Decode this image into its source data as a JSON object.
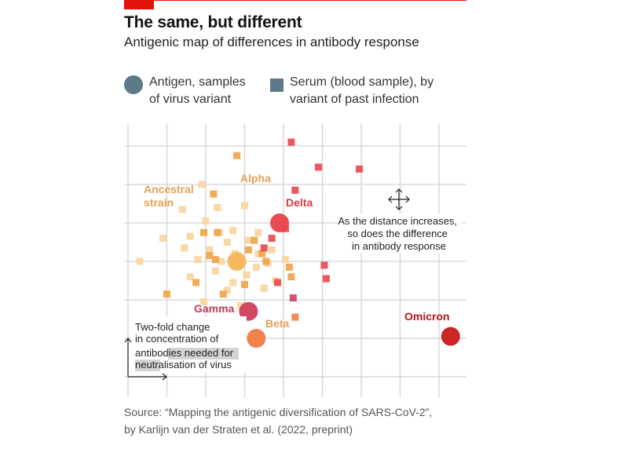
{
  "header": {
    "title": "The same, but different",
    "subtitle": "Antigenic map of differences in antibody response"
  },
  "legend": {
    "antigen_label": "Antigen, samples\nof virus variant",
    "serum_label": "Serum (blood sample), by\nvariant of past infection",
    "antigen_color": "#5d7a89",
    "serum_color": "#5d7a89"
  },
  "source": "Source: “Mapping the antigenic diversification of SARS-CoV-2”,\nby Karlijn van der Straten et al. (2022, preprint)",
  "colors": {
    "ancestral_light": "#f9d8a6",
    "ancestral_big": "#f7b556",
    "alpha": "#f0a040",
    "delta": "#e8424a",
    "gamma": "#cc3e5c",
    "beta": "#f07b42",
    "omicron": "#c91a1a",
    "label_orange": "#e7a257",
    "label_red": "#d63b44",
    "label_gamma": "#c23b57",
    "label_omicron": "#b7141c",
    "grid": "#d3d3d3"
  },
  "chart_data": {
    "type": "scatter",
    "x_units": "two-fold steps",
    "y_units": "two-fold steps",
    "xlim": [
      0,
      8.7
    ],
    "ylim": [
      0,
      6.6
    ],
    "grid": true,
    "antigens": [
      {
        "label": "Ancestral strain",
        "x": 2.8,
        "y": 3.0,
        "color": "ancestral_big"
      },
      {
        "label": "Delta",
        "x": 3.9,
        "y": 4.0,
        "color": "delta"
      },
      {
        "label": "Gamma",
        "x": 3.1,
        "y": 1.7,
        "color": "gamma"
      },
      {
        "label": "Beta",
        "x": 3.3,
        "y": 1.0,
        "color": "beta"
      },
      {
        "label": "Omicron",
        "x": 8.3,
        "y": 1.05,
        "color": "omicron"
      }
    ],
    "sera": [
      {
        "x": 1.9,
        "y": 5.0,
        "color": "ancestral_light"
      },
      {
        "x": 1.4,
        "y": 4.35,
        "color": "ancestral_light"
      },
      {
        "x": 2.3,
        "y": 4.4,
        "color": "ancestral_light"
      },
      {
        "x": 3.0,
        "y": 4.45,
        "color": "ancestral_light"
      },
      {
        "x": 2.0,
        "y": 4.05,
        "color": "ancestral_light"
      },
      {
        "x": 0.9,
        "y": 3.6,
        "color": "ancestral_light"
      },
      {
        "x": 1.6,
        "y": 3.65,
        "color": "ancestral_light"
      },
      {
        "x": 2.35,
        "y": 3.75,
        "color": "ancestral_light"
      },
      {
        "x": 2.7,
        "y": 3.8,
        "color": "ancestral_light"
      },
      {
        "x": 3.35,
        "y": 3.75,
        "color": "ancestral_light"
      },
      {
        "x": 1.45,
        "y": 3.35,
        "color": "ancestral_light"
      },
      {
        "x": 2.1,
        "y": 3.3,
        "color": "ancestral_light"
      },
      {
        "x": 2.55,
        "y": 3.5,
        "color": "ancestral_light"
      },
      {
        "x": 3.1,
        "y": 3.55,
        "color": "ancestral_light"
      },
      {
        "x": 3.7,
        "y": 3.3,
        "color": "ancestral_light"
      },
      {
        "x": 0.3,
        "y": 3.0,
        "color": "ancestral_light"
      },
      {
        "x": 1.8,
        "y": 3.05,
        "color": "ancestral_light"
      },
      {
        "x": 2.25,
        "y": 2.75,
        "color": "ancestral_light"
      },
      {
        "x": 3.3,
        "y": 2.85,
        "color": "ancestral_light"
      },
      {
        "x": 3.6,
        "y": 2.95,
        "color": "ancestral_light"
      },
      {
        "x": 4.05,
        "y": 3.05,
        "color": "ancestral_light"
      },
      {
        "x": 1.6,
        "y": 2.6,
        "color": "ancestral_light"
      },
      {
        "x": 2.7,
        "y": 2.45,
        "color": "ancestral_light"
      },
      {
        "x": 3.05,
        "y": 2.65,
        "color": "ancestral_light"
      },
      {
        "x": 3.8,
        "y": 2.5,
        "color": "ancestral_light"
      },
      {
        "x": 2.55,
        "y": 2.25,
        "color": "ancestral_light"
      },
      {
        "x": 3.5,
        "y": 2.3,
        "color": "ancestral_light"
      },
      {
        "x": 1.95,
        "y": 1.95,
        "color": "ancestral_light"
      },
      {
        "x": 2.9,
        "y": 1.85,
        "color": "ancestral_light"
      },
      {
        "x": 3.35,
        "y": 3.2,
        "color": "ancestral_light"
      },
      {
        "x": 2.75,
        "y": 3.2,
        "color": "ancestral_light"
      },
      {
        "x": 2.4,
        "y": 3.0,
        "color": "ancestral_light"
      },
      {
        "x": 2.8,
        "y": 5.75,
        "color": "alpha"
      },
      {
        "x": 2.2,
        "y": 4.75,
        "color": "alpha"
      },
      {
        "x": 1.95,
        "y": 3.75,
        "color": "alpha"
      },
      {
        "x": 2.3,
        "y": 3.75,
        "color": "alpha"
      },
      {
        "x": 2.1,
        "y": 3.15,
        "color": "alpha"
      },
      {
        "x": 2.25,
        "y": 3.05,
        "color": "alpha"
      },
      {
        "x": 1.75,
        "y": 2.45,
        "color": "alpha"
      },
      {
        "x": 1.0,
        "y": 2.15,
        "color": "alpha"
      },
      {
        "x": 2.45,
        "y": 2.15,
        "color": "alpha"
      },
      {
        "x": 3.0,
        "y": 2.4,
        "color": "alpha"
      },
      {
        "x": 3.1,
        "y": 3.3,
        "color": "alpha"
      },
      {
        "x": 3.45,
        "y": 3.2,
        "color": "alpha"
      },
      {
        "x": 3.55,
        "y": 3.0,
        "color": "alpha"
      },
      {
        "x": 3.25,
        "y": 3.55,
        "color": "alpha"
      },
      {
        "x": 4.15,
        "y": 2.85,
        "color": "alpha"
      },
      {
        "x": 4.2,
        "y": 2.6,
        "color": "alpha"
      },
      {
        "x": 4.2,
        "y": 6.1,
        "color": "delta"
      },
      {
        "x": 4.9,
        "y": 5.45,
        "color": "delta"
      },
      {
        "x": 5.95,
        "y": 5.4,
        "color": "delta"
      },
      {
        "x": 4.3,
        "y": 4.85,
        "color": "delta"
      },
      {
        "x": 4.05,
        "y": 3.85,
        "color": "delta"
      },
      {
        "x": 3.7,
        "y": 3.6,
        "color": "delta"
      },
      {
        "x": 3.5,
        "y": 3.35,
        "color": "delta"
      },
      {
        "x": 3.85,
        "y": 2.45,
        "color": "delta"
      },
      {
        "x": 5.05,
        "y": 2.9,
        "color": "delta"
      },
      {
        "x": 5.1,
        "y": 2.55,
        "color": "delta"
      },
      {
        "x": 4.25,
        "y": 2.05,
        "color": "gamma"
      },
      {
        "x": 1.8,
        "y": 0.2,
        "color": "gamma"
      },
      {
        "x": 4.3,
        "y": 1.55,
        "color": "beta"
      }
    ]
  },
  "annotations": {
    "ancestral": "Ancestral\nstrain",
    "alpha": "Alpha",
    "delta": "Delta",
    "gamma": "Gamma",
    "beta": "Beta",
    "omicron": "Omicron",
    "distance_note": "As the distance increases,\nso does the difference\nin antibody response",
    "scale_line1": "Two-fold change",
    "scale_line2": "in concentration of",
    "scale_line3_plain": "antibo",
    "scale_line3_hl": "dies needed for",
    "scale_line4_hl": "neutr",
    "scale_line4_plain": "alisation of virus"
  }
}
